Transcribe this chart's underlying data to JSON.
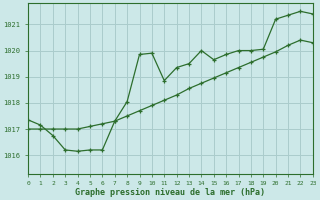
{
  "title": "Graphe pression niveau de la mer (hPa)",
  "background_color": "#cce8e8",
  "grid_color": "#aacccc",
  "line_color": "#2d6e2d",
  "x_min": 0,
  "x_max": 23,
  "y_min": 1015.3,
  "y_max": 1021.8,
  "series1_x": [
    0,
    1,
    2,
    3,
    4,
    5,
    6,
    7,
    8,
    9,
    10,
    11,
    12,
    13,
    14,
    15,
    16,
    17,
    18,
    19,
    20,
    21,
    22,
    23
  ],
  "series1_y": [
    1017.35,
    1017.15,
    1016.75,
    1016.2,
    1016.15,
    1016.2,
    1016.2,
    1017.3,
    1018.05,
    1019.85,
    1019.9,
    1018.85,
    1019.35,
    1019.5,
    1020.0,
    1019.65,
    1019.85,
    1020.0,
    1020.0,
    1020.05,
    1021.2,
    1021.35,
    1021.5,
    1021.4
  ],
  "series2_x": [
    0,
    1,
    2,
    3,
    4,
    5,
    6,
    7,
    8,
    9,
    10,
    11,
    12,
    13,
    14,
    15,
    16,
    17,
    18,
    19,
    20,
    21,
    22,
    23
  ],
  "series2_y": [
    1017.0,
    1017.0,
    1017.0,
    1017.0,
    1017.0,
    1017.1,
    1017.2,
    1017.3,
    1017.5,
    1017.7,
    1017.9,
    1018.1,
    1018.3,
    1018.55,
    1018.75,
    1018.95,
    1019.15,
    1019.35,
    1019.55,
    1019.75,
    1019.95,
    1020.2,
    1020.4,
    1020.3
  ],
  "yticks": [
    1016,
    1017,
    1018,
    1019,
    1020,
    1021
  ],
  "xticks": [
    0,
    1,
    2,
    3,
    4,
    5,
    6,
    7,
    8,
    9,
    10,
    11,
    12,
    13,
    14,
    15,
    16,
    17,
    18,
    19,
    20,
    21,
    22,
    23
  ],
  "figsize": [
    3.2,
    2.0
  ],
  "dpi": 100
}
